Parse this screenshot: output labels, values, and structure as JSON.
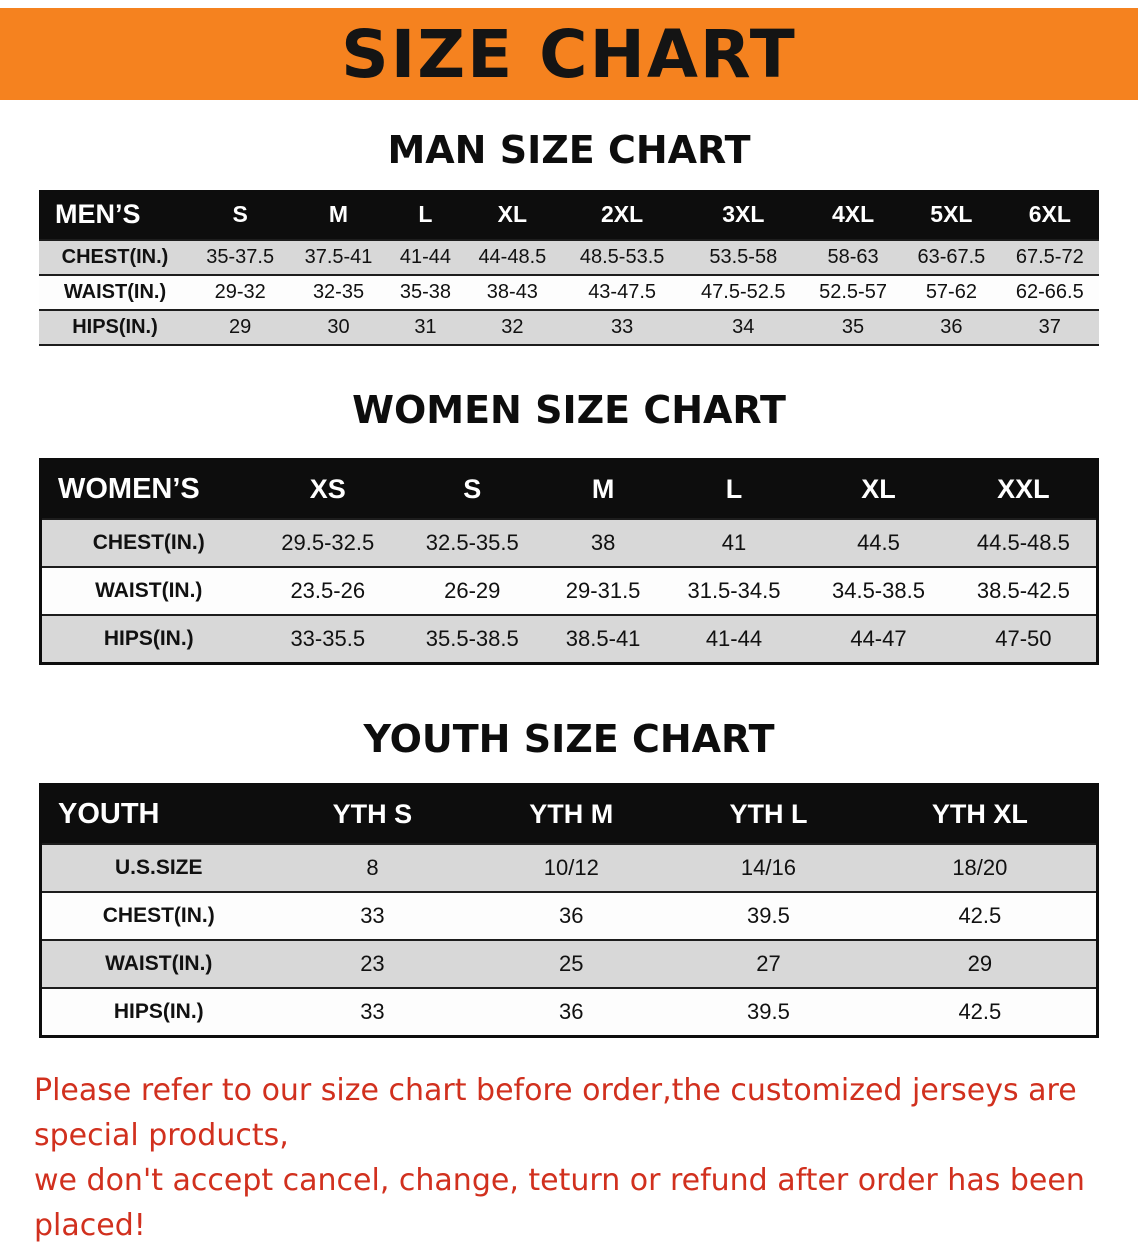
{
  "banner": {
    "title": "SIZE CHART",
    "bg_color": "#f5821f",
    "text_color": "#141414"
  },
  "colors": {
    "header_row_bg": "#0d0d0d",
    "stripe_row_bg": "#d8d8d8",
    "note_red": "#d1301e"
  },
  "sections": [
    {
      "id": "men",
      "heading": "MAN SIZE CHART",
      "table": {
        "header": [
          "MEN’S",
          "S",
          "M",
          "L",
          "XL",
          "2XL",
          "3XL",
          "4XL",
          "5XL",
          "6XL"
        ],
        "rows": [
          [
            "CHEST(IN.)",
            "35-37.5",
            "37.5-41",
            "41-44",
            "44-48.5",
            "48.5-53.5",
            "53.5-58",
            "58-63",
            "63-67.5",
            "67.5-72"
          ],
          [
            "WAIST(IN.)",
            "29-32",
            "32-35",
            "35-38",
            "38-43",
            "43-47.5",
            "47.5-52.5",
            "52.5-57",
            "57-62",
            "62-66.5"
          ],
          [
            "HIPS(IN.)",
            "29",
            "30",
            "31",
            "32",
            "33",
            "34",
            "35",
            "36",
            "37"
          ]
        ]
      }
    },
    {
      "id": "women",
      "heading": "WOMEN SIZE CHART",
      "table": {
        "header": [
          "WOMEN’S",
          "XS",
          "S",
          "M",
          "L",
          "XL",
          "XXL"
        ],
        "rows": [
          [
            "CHEST(IN.)",
            "29.5-32.5",
            "32.5-35.5",
            "38",
            "41",
            "44.5",
            "44.5-48.5"
          ],
          [
            "WAIST(IN.)",
            "23.5-26",
            "26-29",
            "29-31.5",
            "31.5-34.5",
            "34.5-38.5",
            "38.5-42.5"
          ],
          [
            "HIPS(IN.)",
            "33-35.5",
            "35.5-38.5",
            "38.5-41",
            "41-44",
            "44-47",
            "47-50"
          ]
        ]
      }
    },
    {
      "id": "youth",
      "heading": "YOUTH SIZE CHART",
      "table": {
        "header": [
          "YOUTH",
          "YTH S",
          "YTH M",
          "YTH L",
          "YTH XL"
        ],
        "rows": [
          [
            "U.S.SIZE",
            "8",
            "10/12",
            "14/16",
            "18/20"
          ],
          [
            "CHEST(IN.)",
            "33",
            "36",
            "39.5",
            "42.5"
          ],
          [
            "WAIST(IN.)",
            "23",
            "25",
            "27",
            "29"
          ],
          [
            "HIPS(IN.)",
            "33",
            "36",
            "39.5",
            "42.5"
          ]
        ]
      }
    }
  ],
  "note": {
    "line1": "Please refer to our size chart before order,the customized jerseys are special products,",
    "line2": "we don't accept cancel, change, teturn or refund after order has been placed!"
  }
}
